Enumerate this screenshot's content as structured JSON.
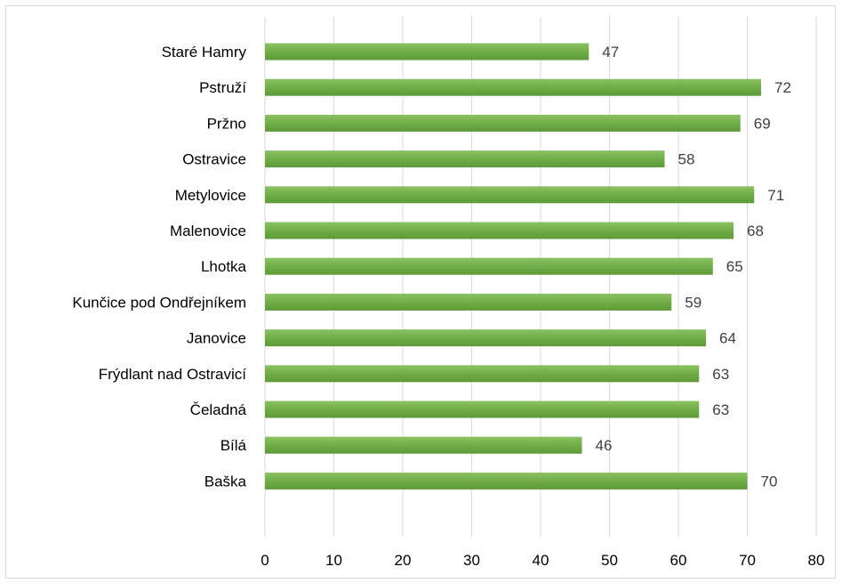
{
  "chart_data": {
    "type": "bar",
    "orientation": "horizontal",
    "categories": [
      "Staré Hamry",
      "Pstruží",
      "Pržno",
      "Ostravice",
      "Metylovice",
      "Malenovice",
      "Lhotka",
      "Kunčice pod Ondřejníkem",
      "Janovice",
      "Frýdlant nad Ostravicí",
      "Čeladná",
      "Bílá",
      "Baška"
    ],
    "values": [
      47,
      72,
      69,
      58,
      71,
      68,
      65,
      59,
      64,
      63,
      63,
      46,
      70
    ],
    "xlim": [
      0,
      80
    ],
    "xticks": [
      0,
      10,
      20,
      30,
      40,
      50,
      60,
      70,
      80
    ],
    "grid": "vertical",
    "data_labels": true,
    "bar_color": "#70ad47",
    "title": "",
    "xlabel": "",
    "ylabel": ""
  }
}
